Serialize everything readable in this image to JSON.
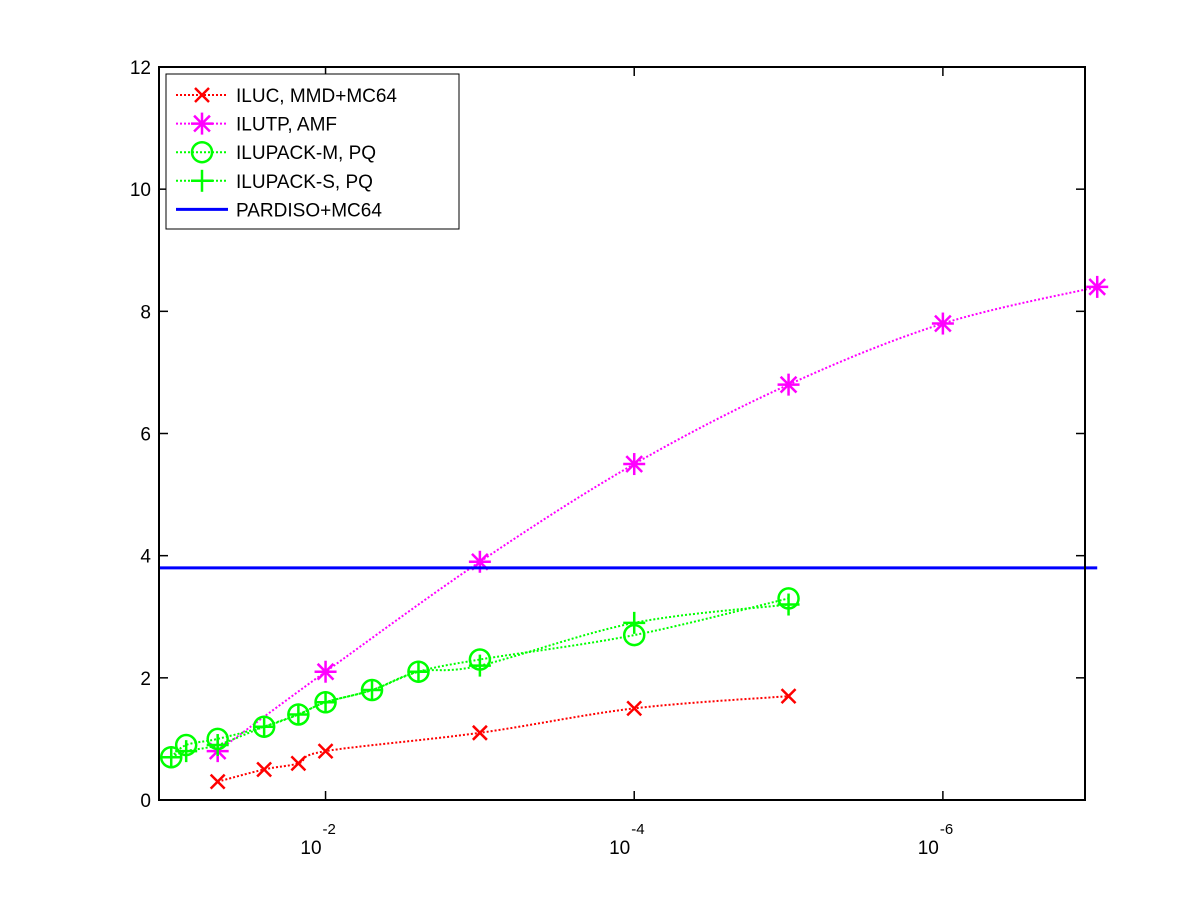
{
  "chart_data": {
    "type": "line",
    "title": "",
    "xlabel": "",
    "ylabel": "",
    "x_scale": "log",
    "x_reversed": true,
    "xlim": [
      0.12,
      1.2e-07
    ],
    "ylim": [
      0,
      12
    ],
    "y_ticks": [
      0,
      2,
      4,
      6,
      8,
      10,
      12
    ],
    "x_ticks": [
      {
        "value": 0.01,
        "base": "10",
        "exp": "-2"
      },
      {
        "value": 0.0001,
        "base": "10",
        "exp": "-4"
      },
      {
        "value": 1e-06,
        "base": "10",
        "exp": "-6"
      }
    ],
    "grid": false,
    "legend_position": "top-left",
    "series": [
      {
        "name": "ILUC, MMD+MC64",
        "color": "#ff0000",
        "line_style": "dotted",
        "marker": "x-mark",
        "x": [
          0.05,
          0.025,
          0.015,
          0.01,
          0.001,
          0.0001,
          1e-05
        ],
        "y": [
          0.3,
          0.5,
          0.6,
          0.8,
          1.1,
          1.5,
          1.7
        ]
      },
      {
        "name": "ILUTP, AMF",
        "color": "#ff00ff",
        "line_style": "dotted",
        "marker": "asterisk",
        "x": [
          0.05,
          0.01,
          0.001,
          0.0001,
          1e-05,
          1e-06,
          1e-07
        ],
        "y": [
          0.8,
          2.1,
          3.9,
          5.5,
          6.8,
          7.8,
          8.4
        ]
      },
      {
        "name": "ILUPACK-M, PQ",
        "color": "#00ff00",
        "line_style": "dotted",
        "marker": "circle",
        "x": [
          0.1,
          0.08,
          0.05,
          0.025,
          0.015,
          0.01,
          0.005,
          0.0025,
          0.001,
          0.0001,
          1e-05
        ],
        "y": [
          0.7,
          0.9,
          1.0,
          1.2,
          1.4,
          1.6,
          1.8,
          2.1,
          2.3,
          2.7,
          3.3
        ]
      },
      {
        "name": "ILUPACK-S, PQ",
        "color": "#00ff00",
        "line_style": "dotted",
        "marker": "plus",
        "x": [
          0.1,
          0.08,
          0.05,
          0.025,
          0.015,
          0.01,
          0.005,
          0.0025,
          0.001,
          0.0001,
          1e-05
        ],
        "y": [
          0.7,
          0.8,
          0.9,
          1.2,
          1.4,
          1.6,
          1.8,
          2.1,
          2.2,
          2.9,
          3.2
        ]
      },
      {
        "name": "PARDISO+MC64",
        "color": "#0000ff",
        "line_style": "solid",
        "marker": "none",
        "x": [
          0.12,
          1e-07
        ],
        "y": [
          3.8,
          3.8
        ]
      }
    ]
  }
}
